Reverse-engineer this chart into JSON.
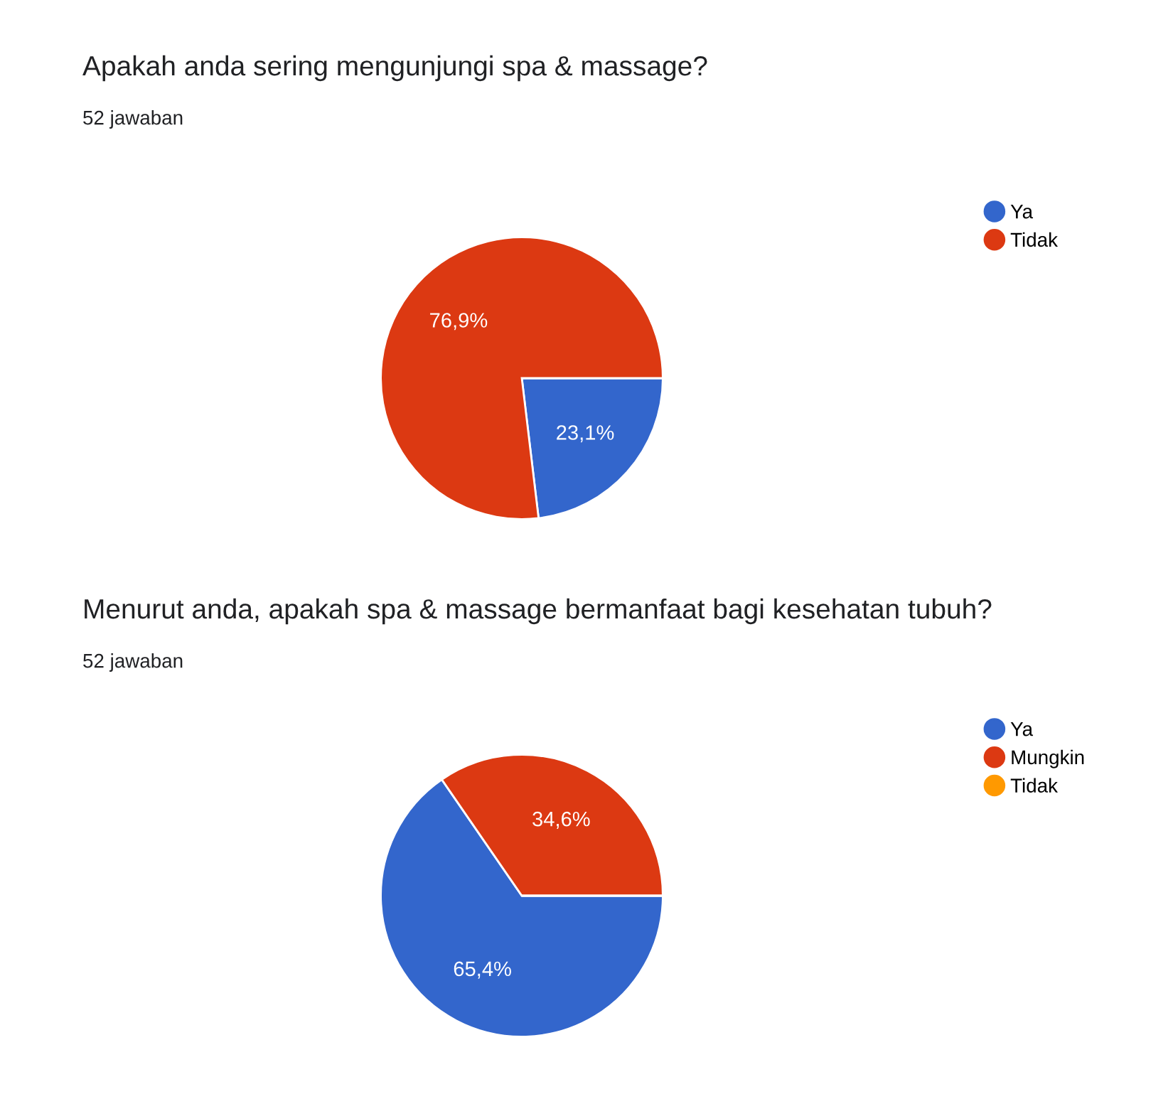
{
  "chart_data": [
    {
      "type": "pie",
      "title": "Apakah anda sering mengunjungi spa & massage?",
      "subtitle": "52 jawaban",
      "categories": [
        "Ya",
        "Tidak"
      ],
      "values": [
        23.1,
        76.9
      ],
      "colors": [
        "#3366cc",
        "#dc3912"
      ],
      "value_labels": [
        "23,1%",
        "76,9%"
      ],
      "legend": "right"
    },
    {
      "type": "pie",
      "title": "Menurut anda, apakah spa & massage bermanfaat bagi kesehatan tubuh?",
      "subtitle": "52 jawaban",
      "categories": [
        "Ya",
        "Mungkin",
        "Tidak"
      ],
      "values": [
        65.4,
        34.6,
        0
      ],
      "colors": [
        "#3366cc",
        "#dc3912",
        "#ff9900"
      ],
      "value_labels": [
        "65,4%",
        "34,6%",
        null
      ],
      "legend": "right"
    }
  ]
}
